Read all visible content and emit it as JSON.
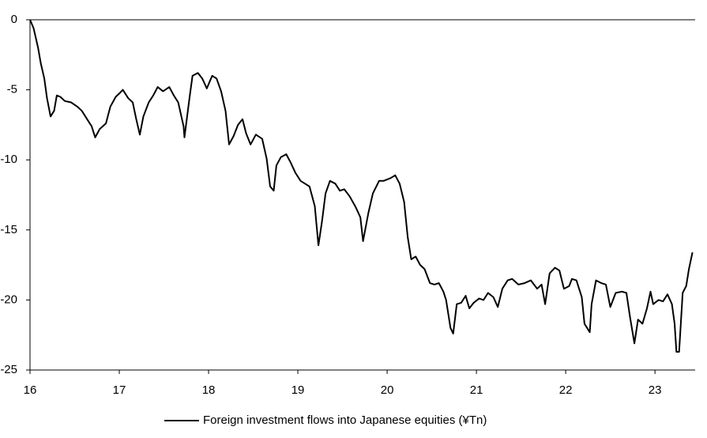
{
  "chart_data": {
    "type": "line",
    "xlim": [
      16,
      23.45
    ],
    "ylim": [
      -25,
      0
    ],
    "xticks": [
      16,
      17,
      18,
      19,
      20,
      21,
      22,
      23
    ],
    "yticks": [
      0,
      -5,
      -10,
      -15,
      -20,
      -25
    ],
    "series": [
      {
        "name": "Foreign investment flows into Japanese equities (¥Tn)",
        "color": "#000000",
        "x": [
          16.0,
          16.04,
          16.09,
          16.12,
          16.16,
          16.19,
          16.23,
          16.27,
          16.3,
          16.34,
          16.39,
          16.46,
          16.53,
          16.58,
          16.64,
          16.69,
          16.73,
          16.78,
          16.85,
          16.9,
          16.96,
          17.01,
          17.04,
          17.1,
          17.15,
          17.19,
          17.23,
          17.27,
          17.33,
          17.38,
          17.43,
          17.49,
          17.56,
          17.61,
          17.66,
          17.72,
          17.73,
          17.79,
          17.82,
          17.88,
          17.93,
          17.98,
          18.04,
          18.09,
          18.14,
          18.19,
          18.23,
          18.28,
          18.33,
          18.38,
          18.42,
          18.47,
          18.53,
          18.6,
          18.65,
          18.69,
          18.73,
          18.76,
          18.81,
          18.87,
          18.92,
          18.97,
          19.03,
          19.08,
          19.13,
          19.19,
          19.23,
          19.27,
          19.31,
          19.36,
          19.42,
          19.47,
          19.52,
          19.58,
          19.65,
          19.7,
          19.73,
          19.79,
          19.84,
          19.91,
          19.96,
          20.04,
          20.09,
          20.14,
          20.19,
          20.23,
          20.27,
          20.32,
          20.37,
          20.42,
          20.48,
          20.53,
          20.58,
          20.63,
          20.66,
          20.71,
          20.74,
          20.78,
          20.83,
          20.88,
          20.92,
          20.97,
          21.03,
          21.08,
          21.13,
          21.19,
          21.24,
          21.29,
          21.35,
          21.4,
          21.47,
          21.54,
          21.61,
          21.68,
          21.73,
          21.77,
          21.82,
          21.88,
          21.93,
          21.98,
          22.04,
          22.07,
          22.12,
          22.18,
          22.21,
          22.27,
          22.29,
          22.34,
          22.4,
          22.45,
          22.5,
          22.56,
          22.63,
          22.68,
          22.72,
          22.77,
          22.81,
          22.86,
          22.91,
          22.95,
          22.98,
          23.04,
          23.09,
          23.14,
          23.19,
          23.22,
          23.24,
          23.27,
          23.31,
          23.35,
          23.38,
          23.42
        ],
        "values": [
          0,
          -0.6,
          -2,
          -3.1,
          -4.2,
          -5.6,
          -6.9,
          -6.5,
          -5.4,
          -5.5,
          -5.8,
          -5.9,
          -6.2,
          -6.5,
          -7.1,
          -7.6,
          -8.4,
          -7.8,
          -7.4,
          -6.2,
          -5.5,
          -5.2,
          -5.0,
          -5.6,
          -5.9,
          -7.1,
          -8.2,
          -6.9,
          -5.9,
          -5.4,
          -4.8,
          -5.1,
          -4.8,
          -5.4,
          -5.9,
          -7.6,
          -8.4,
          -5.4,
          -4.0,
          -3.8,
          -4.2,
          -4.9,
          -4.0,
          -4.2,
          -5.1,
          -6.5,
          -8.9,
          -8.3,
          -7.5,
          -7.1,
          -8.1,
          -8.9,
          -8.2,
          -8.5,
          -9.9,
          -11.9,
          -12.2,
          -10.4,
          -9.8,
          -9.6,
          -10.2,
          -10.9,
          -11.5,
          -11.7,
          -11.9,
          -13.3,
          -16.1,
          -14.4,
          -12.4,
          -11.5,
          -11.7,
          -12.2,
          -12.1,
          -12.6,
          -13.4,
          -14.1,
          -15.8,
          -13.8,
          -12.4,
          -11.5,
          -11.5,
          -11.3,
          -11.1,
          -11.7,
          -13.0,
          -15.5,
          -17.1,
          -16.9,
          -17.5,
          -17.8,
          -18.8,
          -18.9,
          -18.8,
          -19.4,
          -20.0,
          -22.0,
          -22.4,
          -20.3,
          -20.2,
          -19.7,
          -20.6,
          -20.2,
          -19.9,
          -20.0,
          -19.5,
          -19.8,
          -20.5,
          -19.2,
          -18.6,
          -18.5,
          -18.9,
          -18.8,
          -18.6,
          -19.2,
          -18.9,
          -20.3,
          -18.1,
          -17.7,
          -17.9,
          -19.2,
          -19.0,
          -18.5,
          -18.6,
          -19.8,
          -21.7,
          -22.3,
          -20.3,
          -18.6,
          -18.8,
          -18.9,
          -20.5,
          -19.5,
          -19.4,
          -19.5,
          -21.2,
          -23.1,
          -21.4,
          -21.7,
          -20.6,
          -19.4,
          -20.3,
          -20.0,
          -20.1,
          -19.6,
          -20.3,
          -21.7,
          -23.7,
          -23.7,
          -19.5,
          -19.0,
          -17.8,
          -16.6
        ]
      }
    ]
  }
}
